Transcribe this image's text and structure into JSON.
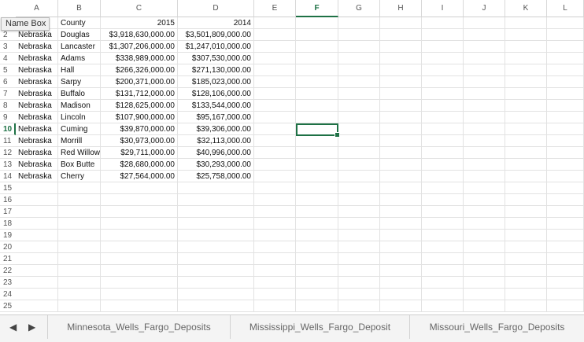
{
  "name_box": "Name Box",
  "columns": [
    "A",
    "B",
    "C",
    "D",
    "E",
    "F",
    "G",
    "H",
    "I",
    "J",
    "K",
    "L"
  ],
  "selected_column": "F",
  "selected_row": 10,
  "header_row": {
    "county": "County",
    "y2015": "2015",
    "y2014": "2014"
  },
  "rows": [
    {
      "row": 2,
      "state": "Nebraska",
      "county": "Douglas",
      "y2015": "$3,918,630,000.00",
      "y2014": "$3,501,809,000.00"
    },
    {
      "row": 3,
      "state": "Nebraska",
      "county": "Lancaster",
      "y2015": "$1,307,206,000.00",
      "y2014": "$1,247,010,000.00"
    },
    {
      "row": 4,
      "state": "Nebraska",
      "county": "Adams",
      "y2015": "$338,989,000.00",
      "y2014": "$307,530,000.00"
    },
    {
      "row": 5,
      "state": "Nebraska",
      "county": "Hall",
      "y2015": "$266,326,000.00",
      "y2014": "$271,130,000.00"
    },
    {
      "row": 6,
      "state": "Nebraska",
      "county": "Sarpy",
      "y2015": "$200,371,000.00",
      "y2014": "$185,023,000.00"
    },
    {
      "row": 7,
      "state": "Nebraska",
      "county": "Buffalo",
      "y2015": "$131,712,000.00",
      "y2014": "$128,106,000.00"
    },
    {
      "row": 8,
      "state": "Nebraska",
      "county": "Madison",
      "y2015": "$128,625,000.00",
      "y2014": "$133,544,000.00"
    },
    {
      "row": 9,
      "state": "Nebraska",
      "county": "Lincoln",
      "y2015": "$107,900,000.00",
      "y2014": "$95,167,000.00"
    },
    {
      "row": 10,
      "state": "Nebraska",
      "county": "Cuming",
      "y2015": "$39,870,000.00",
      "y2014": "$39,306,000.00"
    },
    {
      "row": 11,
      "state": "Nebraska",
      "county": "Morrill",
      "y2015": "$30,973,000.00",
      "y2014": "$32,113,000.00"
    },
    {
      "row": 12,
      "state": "Nebraska",
      "county": "Red Willow",
      "y2015": "$29,711,000.00",
      "y2014": "$40,996,000.00"
    },
    {
      "row": 13,
      "state": "Nebraska",
      "county": "Box Butte",
      "y2015": "$28,680,000.00",
      "y2014": "$30,293,000.00"
    },
    {
      "row": 14,
      "state": "Nebraska",
      "county": "Cherry",
      "y2015": "$27,564,000.00",
      "y2014": "$25,758,000.00"
    }
  ],
  "row_numbers": [
    2,
    3,
    4,
    5,
    6,
    7,
    8,
    9,
    10,
    11,
    12,
    13,
    14,
    15,
    16,
    17,
    18,
    19,
    20,
    21,
    22,
    23,
    24,
    25
  ],
  "sheet_tabs": [
    "Minnesota_Wells_Fargo_Deposits",
    "Mississippi_Wells_Fargo_Deposit",
    "Missouri_Wells_Fargo_Deposits"
  ],
  "nav": {
    "prev": "◀",
    "next": "▶"
  },
  "accent_color": "#1e7145"
}
